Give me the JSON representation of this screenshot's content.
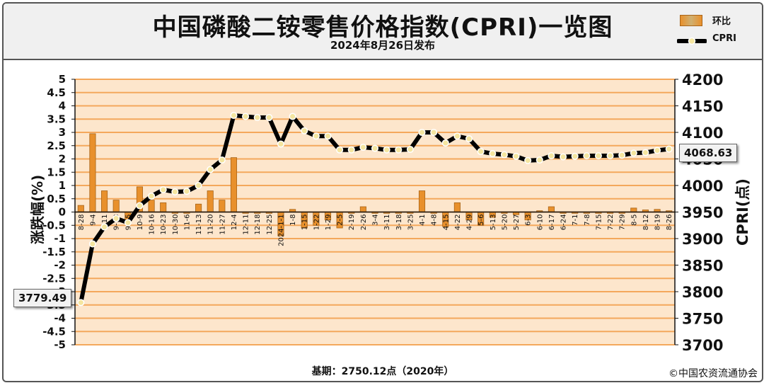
{
  "header": {
    "title": "中国磷酸二铵零售价格指数(CPRI)一览图",
    "subtitle": "2024年8月26日发布"
  },
  "legend": {
    "bar_label": "环比",
    "line_label": "CPRI"
  },
  "footer": {
    "base": "基期：2750.12点（2020年）",
    "copyright": "©中国农资流通协会"
  },
  "callouts": {
    "first": "3779.49",
    "last": "4068.63"
  },
  "colors": {
    "bar": "#e8902c",
    "bar_border": "#a8651a",
    "grid": "#f4a85c",
    "plot_bg": "#fde6cc",
    "line": "#000000",
    "marker": "#f5e6a0"
  },
  "chart_data": {
    "type": "bar+line",
    "categories": [
      "8-28",
      "9-4",
      "9-11",
      "9-18",
      "9-25",
      "10-9",
      "10-16",
      "10-23",
      "10-30",
      "11-6",
      "11-13",
      "11-20",
      "11-27",
      "12-4",
      "12-11",
      "12-18",
      "12-25",
      "2024-1-1",
      "1-8",
      "1-15",
      "1-22",
      "1-29",
      "2-5",
      "2-19",
      "2-26",
      "3-4",
      "3-11",
      "3-18",
      "3-25",
      "4-1",
      "4-8",
      "4-15",
      "4-22",
      "4-29",
      "5-6",
      "5-13",
      "5-20",
      "5-27",
      "6-3",
      "6-10",
      "6-17",
      "6-24",
      "7-1",
      "7-8",
      "7-15",
      "7-22",
      "7-29",
      "8-5",
      "8-12",
      "8-19",
      "8-26"
    ],
    "tick_labels": [
      "8-28",
      "9-4",
      "9-11",
      "9-18",
      "9-25",
      "10-9",
      "10-16",
      "10-23",
      "10-30",
      "11-6",
      "11-13",
      "11-20",
      "11-27",
      "12-4",
      "12-11",
      "12-18",
      "12-25",
      "2024-1-1",
      "1-8",
      "1-15",
      "1-22",
      "1-29",
      "2-5",
      "2-19",
      "2-26",
      "3-4",
      "3-11",
      "3-18",
      "3-25",
      "4-1",
      "4-8",
      "4-15",
      "4-22",
      "4-29",
      "5-6",
      "5-13",
      "5-20",
      "5-27",
      "6-3",
      "6-10",
      "6-17",
      "6-24",
      "7-1",
      "7-8",
      "7-15",
      "7-22",
      "7-29",
      "8-5",
      "8-12",
      "8-19",
      "8-26"
    ],
    "series": [
      {
        "name": "环比",
        "type": "bar",
        "axis": "left",
        "values": [
          0.25,
          2.95,
          0.8,
          0.45,
          -0.3,
          0.95,
          0.45,
          0.35,
          -0.05,
          -0.05,
          0.3,
          0.8,
          0.45,
          2.05,
          -0.05,
          -0.05,
          -0.05,
          -0.9,
          0.1,
          -0.6,
          -0.5,
          -0.3,
          -0.6,
          -0.05,
          0.2,
          -0.05,
          -0.05,
          -0.05,
          -0.05,
          0.8,
          -0.05,
          -0.55,
          0.35,
          -0.3,
          -0.5,
          -0.2,
          -0.05,
          -0.1,
          -0.3,
          0.05,
          0.2,
          -0.05,
          -0.05,
          -0.05,
          -0.05,
          -0.05,
          -0.05,
          0.15,
          0.08,
          0.1,
          0.05
        ]
      },
      {
        "name": "CPRI",
        "type": "line",
        "axis": "right",
        "values": [
          3779.49,
          3890,
          3922,
          3938,
          3930,
          3962,
          3980,
          3992,
          3988,
          3989,
          4000,
          4030,
          4048,
          4132,
          4130,
          4128,
          4128,
          4078,
          4130,
          4103,
          4093,
          4093,
          4067,
          4067,
          4072,
          4070,
          4067,
          4067,
          4068,
          4100,
          4100,
          4080,
          4093,
          4088,
          4064,
          4060,
          4058,
          4055,
          4047,
          4048,
          4056,
          4054,
          4055,
          4056,
          4056,
          4056,
          4057,
          4061,
          4062,
          4066,
          4068.63
        ]
      }
    ],
    "yleft": {
      "label": "涨跌幅(%)",
      "min": -5,
      "max": 5,
      "step": 0.5
    },
    "yright": {
      "label": "CPRI(点)",
      "min": 3700,
      "max": 4200,
      "step": 50
    },
    "grid": true,
    "legend_position": "top-right"
  }
}
